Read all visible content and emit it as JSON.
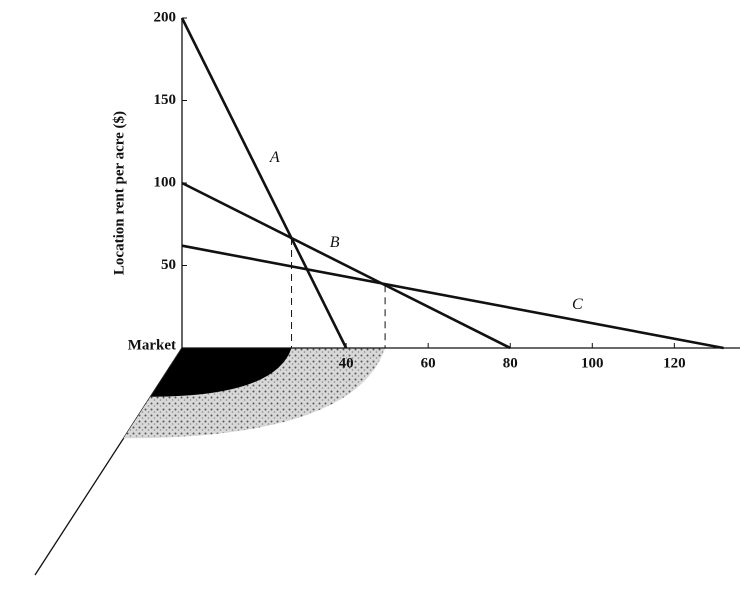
{
  "chart_data": {
    "type": "line",
    "y_label": "Location rent per acre ($)",
    "origin_label": "Market",
    "series": [
      {
        "name": "A",
        "color": "#111111",
        "x": [
          0,
          40
        ],
        "values": [
          200,
          0
        ]
      },
      {
        "name": "B",
        "color": "#111111",
        "x": [
          0,
          80
        ],
        "values": [
          100,
          0
        ]
      },
      {
        "name": "C",
        "color": "#111111",
        "x": [
          0,
          132
        ],
        "values": [
          62,
          0
        ]
      }
    ],
    "guides": [
      {
        "x": 26.7,
        "y": 66.7
      },
      {
        "x": 49.5,
        "y": 38
      }
    ],
    "xlim": [
      0,
      136
    ],
    "ylim": [
      0,
      200
    ],
    "xticks": [
      40,
      60,
      80,
      100,
      120
    ],
    "yticks": [
      50,
      100,
      150,
      200
    ],
    "grid": false
  }
}
